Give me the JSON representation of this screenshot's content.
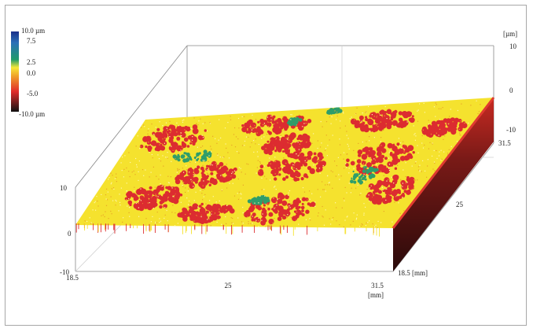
{
  "chart_data": {
    "type": "surface-3d",
    "title": "",
    "x_axis": {
      "unit": "[mm]",
      "ticks": [
        "18.5",
        "25",
        "31.5"
      ],
      "range": [
        18.5,
        31.5
      ]
    },
    "y_axis": {
      "unit": "[mm]",
      "ticks": [
        "18.5 [mm]",
        "25",
        "31.5"
      ],
      "range": [
        18.5,
        31.5
      ]
    },
    "z_axis": {
      "unit": "[µm]",
      "left_ticks": [
        "10",
        "0",
        "-10"
      ],
      "right_ticks": [
        "10",
        "0",
        "-10"
      ],
      "range": [
        -10,
        10
      ]
    },
    "colorbar": {
      "labels": [
        "10.0 µm",
        "7.5",
        "2.5",
        "0.0",
        "-5.0",
        "-10.0 µm"
      ],
      "values": [
        10.0,
        7.5,
        2.5,
        0.0,
        -5.0,
        -10.0
      ],
      "colors": {
        "top": "#1a2f8a",
        "high": "#1f9a6a",
        "mid_high": "#f7e838",
        "zero": "#f0a52a",
        "low": "#e02a2a",
        "bottom": "#101010"
      }
    },
    "surface_colors": {
      "yellow": "#f5e22e",
      "red": "#dc2c30",
      "green": "#2f9d6a",
      "side_dark": "#3a0f10",
      "side_red": "#c0281f"
    },
    "grid": true
  }
}
